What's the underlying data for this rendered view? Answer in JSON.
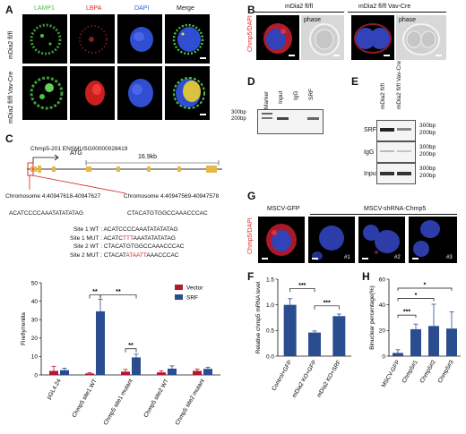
{
  "panels": {
    "A": "A",
    "B": "B",
    "C": "C",
    "D": "D",
    "E": "E",
    "F": "F",
    "G": "G",
    "H": "H"
  },
  "panelA": {
    "headers": [
      "LAMP1",
      "LBPA",
      "DAPI",
      "Merge"
    ],
    "rows": [
      "mDia2 fl/fl",
      "mDia2 fl/fl Vav-Cre"
    ],
    "colors": {
      "lamp1": "#4fc04a",
      "lbpa": "#e02a2a",
      "dapi": "#3a5be0"
    }
  },
  "panelB": {
    "groups": [
      "mDia2 fl/fl",
      "mDia2 fl/fl Vav-Cre"
    ],
    "stain": "Chmp5/DAPI",
    "phase": "phase"
  },
  "panelC": {
    "gene": "Chmp5-201 ENSMUSG00000028419",
    "atg": "ATG",
    "length": "16.9kb",
    "chr1": "Chromosome 4:40947618-40947627",
    "chr2": "Chromosome 4:40947569-40947578",
    "seq1": "ACATCCCCAAATATATATAG",
    "seq2": "CTACATGTGGCCAAACCCAC",
    "sites": [
      {
        "label": "Site 1 WT :",
        "pre": "ACATCCCCAAATATATATAG",
        "mut": "",
        "post": ""
      },
      {
        "label": "Site 1 MUT :",
        "pre": "ACATC",
        "mut": "TTT",
        "post": "AAATATATATAG"
      },
      {
        "label": "Site 2 WT :",
        "pre": "CTACATGTGGCCAAACCCAC",
        "mut": "",
        "post": ""
      },
      {
        "label": "Site 2 MUT :",
        "pre": "CTACAT",
        "mut": "ATAATT",
        "post": "AAACCCAC"
      }
    ]
  },
  "panelD": {
    "lanes": [
      "Marker",
      "Input",
      "IgG",
      "SRF"
    ],
    "markers": [
      "300bp",
      "200bp"
    ]
  },
  "panelE": {
    "columns": [
      "mDia2 fl/fl",
      "mDia2 fl/fl Vav-Cre"
    ],
    "rows": [
      "SRF",
      "IgG",
      "Input"
    ],
    "markers": [
      "300bp",
      "200bp"
    ]
  },
  "panelG": {
    "headers": [
      "MSCV-GFP",
      "MSCV-shRNA-Chmp5"
    ],
    "stain": "Chmp5/DAPI",
    "clones": [
      "#1",
      "#2",
      "#3"
    ]
  },
  "sig": {
    "two": "**",
    "three": "***",
    "one": "*"
  },
  "chart_data": [
    {
      "panel": "C",
      "type": "bar",
      "ylabel": "Firefly/renilla",
      "ylim": [
        0,
        50
      ],
      "yticks": [
        0,
        10,
        20,
        30,
        40,
        50
      ],
      "categories": [
        "pGL4.24",
        "Chmp5 site1 WT",
        "Chmp5 site1 mutant",
        "Chmp5 site2 WT",
        "Chmp5 site2 mutant"
      ],
      "legend_position": "top-right",
      "series": [
        {
          "name": "Vector",
          "color": "#b5172f",
          "values": [
            2.2,
            0.8,
            1.8,
            1.4,
            2.2
          ],
          "errors": [
            2.5,
            0.5,
            1.2,
            0.8,
            1.0
          ]
        },
        {
          "name": "SRF",
          "color": "#2a4d8f",
          "values": [
            2.6,
            34.5,
            9.5,
            3.4,
            3.3
          ],
          "errors": [
            1.0,
            6.5,
            1.8,
            1.5,
            0.8
          ]
        }
      ]
    },
    {
      "panel": "F",
      "type": "bar",
      "ylabel": "Relative chmp5 mRNA level",
      "ylim": [
        0,
        1.5
      ],
      "yticks": [
        0.0,
        0.5,
        1.0,
        1.5
      ],
      "categories": [
        "Control+GFP",
        "mDia2 KO+GFP",
        "mDia2 KO+SRF"
      ],
      "series": [
        {
          "color": "#2a4d8f",
          "values": [
            1.0,
            0.46,
            0.78
          ],
          "errors": [
            0.12,
            0.03,
            0.04
          ]
        }
      ]
    },
    {
      "panel": "H",
      "type": "bar",
      "ylabel": "Binuclear percentage(%)",
      "ylim": [
        0,
        60
      ],
      "yticks": [
        0,
        20,
        40,
        60
      ],
      "categories": [
        "MSCV-GFP",
        "Chmp5#1",
        "Chmp5#2",
        "Chmp5#3"
      ],
      "series": [
        {
          "color": "#2a4d8f",
          "values": [
            2.5,
            21,
            23.5,
            21.5
          ],
          "errors": [
            2.5,
            4,
            17,
            13
          ]
        }
      ]
    }
  ]
}
